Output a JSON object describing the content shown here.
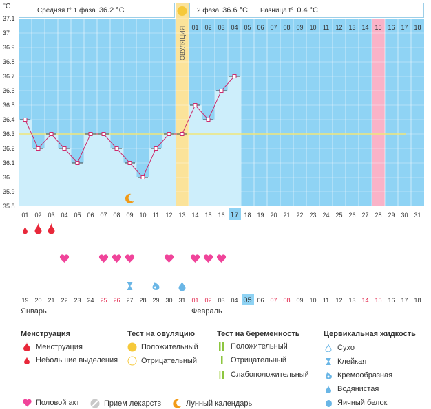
{
  "header": {
    "phase1_label": "Средняя t° 1 фаза",
    "phase1_value": "36.2 °C",
    "phase2_label": "2 фаза",
    "phase2_value": "36.6 °C",
    "diff_label": "Разница t°",
    "diff_value": "0.4 °C",
    "unit": "°C"
  },
  "chart_data": {
    "type": "line",
    "ylim": [
      35.8,
      37.1
    ],
    "yticks": [
      "37.1",
      "37",
      "36.9",
      "36.8",
      "36.7",
      "36.6",
      "36.5",
      "36.4",
      "36.3",
      "36.2",
      "36.1",
      "36",
      "35.9",
      "35.8"
    ],
    "coverline": 36.3,
    "ovulation_label": "ОВУЛЯЦИЯ",
    "ovulation_day": 13,
    "highlight_day": 28,
    "today_day": 17,
    "days": [
      "01",
      "02",
      "03",
      "04",
      "05",
      "06",
      "07",
      "08",
      "09",
      "10",
      "11",
      "12",
      "13",
      "14",
      "15",
      "16",
      "17",
      "18",
      "19",
      "20",
      "21",
      "22",
      "23",
      "24",
      "25",
      "26",
      "27",
      "28",
      "29",
      "30",
      "31"
    ],
    "temps": [
      36.4,
      36.2,
      36.3,
      36.2,
      36.1,
      36.3,
      36.3,
      36.2,
      36.1,
      36.0,
      36.2,
      36.3,
      36.3,
      36.5,
      36.4,
      36.6,
      36.7
    ],
    "cycle_after_ov": [
      "01",
      "02",
      "03",
      "04",
      "05",
      "06",
      "07",
      "08",
      "09",
      "10",
      "11",
      "12",
      "13",
      "14",
      "15",
      "16",
      "17",
      "18"
    ],
    "moon_day": 9,
    "menstruation": {
      "day1": "full",
      "day2": "full",
      "day3": "full"
    },
    "intercourse_days": [
      4,
      7,
      8,
      9,
      12,
      14,
      15,
      16
    ],
    "cervical": {
      "day9": "sticky",
      "day11": "creamy",
      "day13": "egg-white"
    },
    "dates": [
      "19",
      "20",
      "21",
      "22",
      "23",
      "24",
      "25",
      "26",
      "27",
      "28",
      "29",
      "30",
      "31",
      "01",
      "02",
      "03",
      "04",
      "05",
      "06",
      "07",
      "08",
      "09",
      "10",
      "11",
      "12",
      "13",
      "14",
      "15",
      "16",
      "17",
      "18"
    ],
    "red_dates": [
      6,
      7,
      13,
      14,
      19,
      20,
      26,
      27
    ],
    "today_date_index": 17,
    "month1": "Январь",
    "month2": "Февраль"
  },
  "legend": {
    "menstruation_title": "Менструация",
    "menstruation_item": "Менструация",
    "spotting_item": "Небольшие выделения",
    "ovtest_title": "Тест на овуляцию",
    "ovtest_positive": "Положительный",
    "ovtest_negative": "Отрицательный",
    "pregtest_title": "Тест на беременность",
    "pregtest_positive": "Положительный",
    "pregtest_negative": "Отрицательный",
    "pregtest_weak": "Слабоположительный",
    "cervical_title": "Цервикальная жидкость",
    "cervical_dry": "Сухо",
    "cervical_sticky": "Клейкая",
    "cervical_creamy": "Кремообразная",
    "cervical_watery": "Водянистая",
    "cervical_eggwhite": "Яичный белок",
    "intercourse": "Половой акт",
    "medication": "Прием лекарств",
    "lunar": "Лунный календарь"
  },
  "colors": {
    "bg_blue": "#8fd3f4",
    "bar_fill": "#cdeefb",
    "ovulation_yellow": "#fbe39a",
    "highlight_pink": "#f9b3c8",
    "line": "#cc2b6c",
    "coverline": "#f0e67a",
    "heart": "#f0449a",
    "drop_red": "#e8283a",
    "cervical_blue": "#6ab6e6",
    "sun": "#f6c93a",
    "moon": "#f29a16",
    "weekend_red": "#e2264c"
  }
}
